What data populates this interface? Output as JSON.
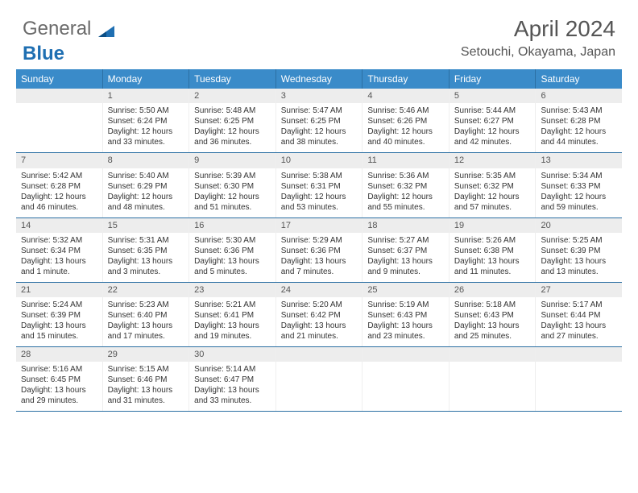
{
  "brand": {
    "part1": "General",
    "part2": "Blue"
  },
  "header": {
    "month": "April 2024",
    "location": "Setouchi, Okayama, Japan"
  },
  "colors": {
    "header_bg": "#3a8bc9",
    "border": "#2b6fa3",
    "daynum_bg": "#ededed",
    "text": "#333333"
  },
  "daysOfWeek": [
    "Sunday",
    "Monday",
    "Tuesday",
    "Wednesday",
    "Thursday",
    "Friday",
    "Saturday"
  ],
  "weeks": [
    [
      {
        "n": "",
        "sr": "",
        "ss": "",
        "dl": ""
      },
      {
        "n": "1",
        "sr": "Sunrise: 5:50 AM",
        "ss": "Sunset: 6:24 PM",
        "dl": "Daylight: 12 hours and 33 minutes."
      },
      {
        "n": "2",
        "sr": "Sunrise: 5:48 AM",
        "ss": "Sunset: 6:25 PM",
        "dl": "Daylight: 12 hours and 36 minutes."
      },
      {
        "n": "3",
        "sr": "Sunrise: 5:47 AM",
        "ss": "Sunset: 6:25 PM",
        "dl": "Daylight: 12 hours and 38 minutes."
      },
      {
        "n": "4",
        "sr": "Sunrise: 5:46 AM",
        "ss": "Sunset: 6:26 PM",
        "dl": "Daylight: 12 hours and 40 minutes."
      },
      {
        "n": "5",
        "sr": "Sunrise: 5:44 AM",
        "ss": "Sunset: 6:27 PM",
        "dl": "Daylight: 12 hours and 42 minutes."
      },
      {
        "n": "6",
        "sr": "Sunrise: 5:43 AM",
        "ss": "Sunset: 6:28 PM",
        "dl": "Daylight: 12 hours and 44 minutes."
      }
    ],
    [
      {
        "n": "7",
        "sr": "Sunrise: 5:42 AM",
        "ss": "Sunset: 6:28 PM",
        "dl": "Daylight: 12 hours and 46 minutes."
      },
      {
        "n": "8",
        "sr": "Sunrise: 5:40 AM",
        "ss": "Sunset: 6:29 PM",
        "dl": "Daylight: 12 hours and 48 minutes."
      },
      {
        "n": "9",
        "sr": "Sunrise: 5:39 AM",
        "ss": "Sunset: 6:30 PM",
        "dl": "Daylight: 12 hours and 51 minutes."
      },
      {
        "n": "10",
        "sr": "Sunrise: 5:38 AM",
        "ss": "Sunset: 6:31 PM",
        "dl": "Daylight: 12 hours and 53 minutes."
      },
      {
        "n": "11",
        "sr": "Sunrise: 5:36 AM",
        "ss": "Sunset: 6:32 PM",
        "dl": "Daylight: 12 hours and 55 minutes."
      },
      {
        "n": "12",
        "sr": "Sunrise: 5:35 AM",
        "ss": "Sunset: 6:32 PM",
        "dl": "Daylight: 12 hours and 57 minutes."
      },
      {
        "n": "13",
        "sr": "Sunrise: 5:34 AM",
        "ss": "Sunset: 6:33 PM",
        "dl": "Daylight: 12 hours and 59 minutes."
      }
    ],
    [
      {
        "n": "14",
        "sr": "Sunrise: 5:32 AM",
        "ss": "Sunset: 6:34 PM",
        "dl": "Daylight: 13 hours and 1 minute."
      },
      {
        "n": "15",
        "sr": "Sunrise: 5:31 AM",
        "ss": "Sunset: 6:35 PM",
        "dl": "Daylight: 13 hours and 3 minutes."
      },
      {
        "n": "16",
        "sr": "Sunrise: 5:30 AM",
        "ss": "Sunset: 6:36 PM",
        "dl": "Daylight: 13 hours and 5 minutes."
      },
      {
        "n": "17",
        "sr": "Sunrise: 5:29 AM",
        "ss": "Sunset: 6:36 PM",
        "dl": "Daylight: 13 hours and 7 minutes."
      },
      {
        "n": "18",
        "sr": "Sunrise: 5:27 AM",
        "ss": "Sunset: 6:37 PM",
        "dl": "Daylight: 13 hours and 9 minutes."
      },
      {
        "n": "19",
        "sr": "Sunrise: 5:26 AM",
        "ss": "Sunset: 6:38 PM",
        "dl": "Daylight: 13 hours and 11 minutes."
      },
      {
        "n": "20",
        "sr": "Sunrise: 5:25 AM",
        "ss": "Sunset: 6:39 PM",
        "dl": "Daylight: 13 hours and 13 minutes."
      }
    ],
    [
      {
        "n": "21",
        "sr": "Sunrise: 5:24 AM",
        "ss": "Sunset: 6:39 PM",
        "dl": "Daylight: 13 hours and 15 minutes."
      },
      {
        "n": "22",
        "sr": "Sunrise: 5:23 AM",
        "ss": "Sunset: 6:40 PM",
        "dl": "Daylight: 13 hours and 17 minutes."
      },
      {
        "n": "23",
        "sr": "Sunrise: 5:21 AM",
        "ss": "Sunset: 6:41 PM",
        "dl": "Daylight: 13 hours and 19 minutes."
      },
      {
        "n": "24",
        "sr": "Sunrise: 5:20 AM",
        "ss": "Sunset: 6:42 PM",
        "dl": "Daylight: 13 hours and 21 minutes."
      },
      {
        "n": "25",
        "sr": "Sunrise: 5:19 AM",
        "ss": "Sunset: 6:43 PM",
        "dl": "Daylight: 13 hours and 23 minutes."
      },
      {
        "n": "26",
        "sr": "Sunrise: 5:18 AM",
        "ss": "Sunset: 6:43 PM",
        "dl": "Daylight: 13 hours and 25 minutes."
      },
      {
        "n": "27",
        "sr": "Sunrise: 5:17 AM",
        "ss": "Sunset: 6:44 PM",
        "dl": "Daylight: 13 hours and 27 minutes."
      }
    ],
    [
      {
        "n": "28",
        "sr": "Sunrise: 5:16 AM",
        "ss": "Sunset: 6:45 PM",
        "dl": "Daylight: 13 hours and 29 minutes."
      },
      {
        "n": "29",
        "sr": "Sunrise: 5:15 AM",
        "ss": "Sunset: 6:46 PM",
        "dl": "Daylight: 13 hours and 31 minutes."
      },
      {
        "n": "30",
        "sr": "Sunrise: 5:14 AM",
        "ss": "Sunset: 6:47 PM",
        "dl": "Daylight: 13 hours and 33 minutes."
      },
      {
        "n": "",
        "sr": "",
        "ss": "",
        "dl": ""
      },
      {
        "n": "",
        "sr": "",
        "ss": "",
        "dl": ""
      },
      {
        "n": "",
        "sr": "",
        "ss": "",
        "dl": ""
      },
      {
        "n": "",
        "sr": "",
        "ss": "",
        "dl": ""
      }
    ]
  ]
}
